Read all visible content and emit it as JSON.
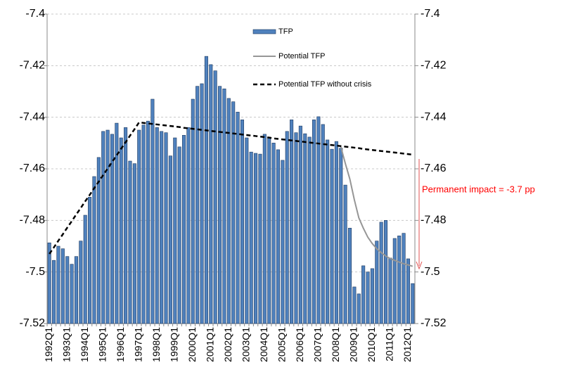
{
  "chart_data": {
    "type": "bar",
    "categories": [
      "1992Q1",
      null,
      null,
      null,
      "1993Q1",
      null,
      null,
      null,
      "1994Q1",
      null,
      null,
      null,
      "1995Q1",
      null,
      null,
      null,
      "1996Q1",
      null,
      null,
      null,
      "1997Q1",
      null,
      null,
      null,
      "1998Q1",
      null,
      null,
      null,
      "1999Q1",
      null,
      null,
      null,
      "2000Q1",
      null,
      null,
      null,
      "2001Q1",
      null,
      null,
      null,
      "2002Q1",
      null,
      null,
      null,
      "2003Q1",
      null,
      null,
      null,
      "2004Q1",
      null,
      null,
      null,
      "2005Q1",
      null,
      null,
      null,
      "2006Q1",
      null,
      null,
      null,
      "2007Q1",
      null,
      null,
      null,
      "2008Q1",
      null,
      null,
      null,
      "2009Q1",
      null,
      null,
      null,
      "2010Q1",
      null,
      null,
      null,
      "2011Q1",
      null,
      null,
      null,
      "2012Q1",
      null
    ],
    "series": [
      {
        "name": "TFP",
        "type": "bar",
        "color": "#4f81bd",
        "values": [
          -7.4887,
          -7.4955,
          -7.49,
          -7.491,
          -7.494,
          -7.497,
          -7.494,
          -7.488,
          -7.478,
          -7.471,
          -7.463,
          -7.4556,
          -7.4455,
          -7.445,
          -7.4466,
          -7.4423,
          -7.448,
          -7.444,
          -7.457,
          -7.458,
          -7.445,
          -7.443,
          -7.4415,
          -7.433,
          -7.444,
          -7.4455,
          -7.446,
          -7.455,
          -7.448,
          -7.4515,
          -7.447,
          -7.444,
          -7.433,
          -7.428,
          -7.427,
          -7.4164,
          -7.4196,
          -7.422,
          -7.428,
          -7.429,
          -7.4327,
          -7.434,
          -7.438,
          -7.441,
          -7.448,
          -7.4535,
          -7.454,
          -7.4543,
          -7.4466,
          -7.4477,
          -7.45,
          -7.4526,
          -7.4567,
          -7.4455,
          -7.441,
          -7.446,
          -7.4434,
          -7.4464,
          -7.4477,
          -7.441,
          -7.4398,
          -7.4428,
          -7.4488,
          -7.4524,
          -7.4494,
          -7.452,
          -7.4663,
          -7.483,
          -7.5058,
          -7.5085,
          -7.4976,
          -7.5,
          -7.4987,
          -7.488,
          -7.4807,
          -7.48,
          -7.4946,
          -7.487,
          -7.486,
          -7.485,
          -7.4949,
          -7.5045
        ]
      },
      {
        "name": "Potential TFP",
        "type": "line",
        "color": "#969696",
        "values": [
          null,
          null,
          null,
          null,
          null,
          null,
          null,
          null,
          null,
          null,
          null,
          null,
          null,
          null,
          null,
          null,
          null,
          null,
          null,
          null,
          null,
          null,
          null,
          null,
          null,
          null,
          null,
          null,
          null,
          null,
          null,
          null,
          null,
          null,
          null,
          null,
          null,
          null,
          null,
          null,
          null,
          null,
          null,
          null,
          null,
          null,
          null,
          null,
          null,
          null,
          null,
          null,
          null,
          null,
          null,
          null,
          null,
          null,
          null,
          null,
          null,
          null,
          null,
          null,
          null,
          -7.4515,
          -7.458,
          -7.464,
          -7.472,
          -7.479,
          -7.483,
          -7.4865,
          -7.489,
          -7.491,
          -7.4925,
          -7.4938,
          -7.4948,
          -7.4955,
          -7.4962,
          -7.4968,
          -7.4973,
          -7.4978
        ]
      },
      {
        "name": "Potential TFP without crisis",
        "type": "line",
        "dashed": true,
        "color": "#000000",
        "values": [
          -7.493,
          -7.4905,
          -7.4879,
          -7.4854,
          -7.4828,
          -7.4803,
          -7.4777,
          -7.4752,
          -7.4726,
          -7.4701,
          -7.4675,
          -7.465,
          -7.4624,
          -7.4599,
          -7.4573,
          -7.4548,
          -7.4522,
          -7.4497,
          -7.4471,
          -7.4446,
          -7.442,
          -7.4422,
          -7.4424,
          -7.4426,
          -7.4428,
          -7.443,
          -7.4432,
          -7.4434,
          -7.4436,
          -7.4438,
          -7.4441,
          -7.4443,
          -7.4445,
          -7.4447,
          -7.4449,
          -7.4451,
          -7.4453,
          -7.4455,
          -7.4457,
          -7.4459,
          -7.4461,
          -7.4463,
          -7.4465,
          -7.4467,
          -7.4469,
          -7.4471,
          -7.4473,
          -7.4475,
          -7.4477,
          -7.4479,
          -7.4482,
          -7.4484,
          -7.4486,
          -7.4488,
          -7.449,
          -7.4492,
          -7.4494,
          -7.4496,
          -7.4498,
          -7.45,
          -7.4502,
          -7.4504,
          -7.4506,
          -7.4508,
          -7.451,
          -7.4512,
          -7.4514,
          -7.4516,
          -7.4518,
          -7.452,
          -7.4523,
          -7.4525,
          -7.4527,
          -7.4529,
          -7.4531,
          -7.4533,
          -7.4535,
          -7.4537,
          -7.4539,
          -7.4541,
          -7.4543,
          -7.4545
        ]
      }
    ],
    "ylim": [
      -7.52,
      -7.4
    ],
    "yticks": [
      -7.52,
      -7.5,
      -7.48,
      -7.46,
      -7.44,
      -7.42,
      -7.4
    ],
    "y2lim": [
      -7.52,
      -7.4
    ],
    "y2ticks": [
      -7.52,
      -7.5,
      -7.48,
      -7.46,
      -7.44,
      -7.42,
      -7.4
    ],
    "grid": true,
    "legend": "top",
    "annotation": {
      "text": "Permanent impact = -3.7 pp",
      "color": "#ff0000"
    }
  }
}
